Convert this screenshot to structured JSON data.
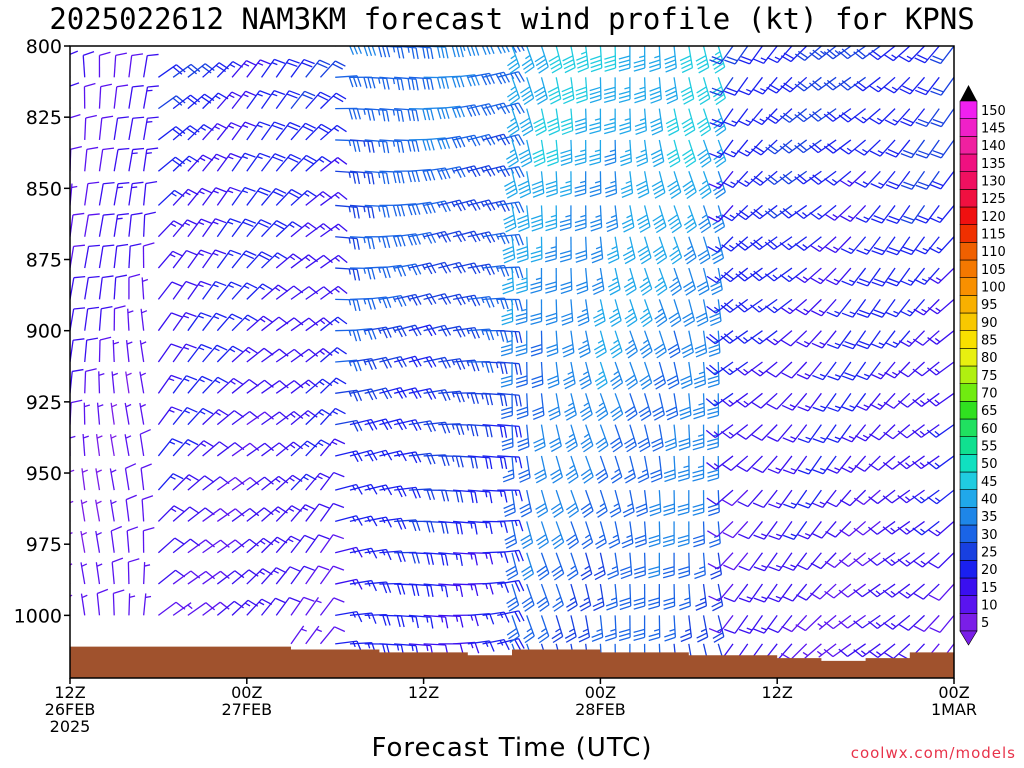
{
  "title": "2025022612 NAM3KM forecast wind profile (kt) for KPNS",
  "credit": "coolwx.com/models",
  "chart_data": {
    "type": "wind_barb_time_height",
    "title": "2025022612 NAM3KM forecast wind profile (kt) for KPNS",
    "xlabel": "Forecast Time (UTC)",
    "ylabel": "",
    "units": "kt",
    "y_ticks": [
      800,
      825,
      850,
      875,
      900,
      925,
      950,
      975,
      1000
    ],
    "ylim": [
      800,
      1022
    ],
    "y_inverted": true,
    "x_range_hours": [
      0,
      60
    ],
    "x_ticks": [
      {
        "hour": 0,
        "lines": [
          "12Z",
          "26FEB",
          "2025"
        ]
      },
      {
        "hour": 12,
        "lines": [
          "00Z",
          "27FEB"
        ]
      },
      {
        "hour": 24,
        "lines": [
          "12Z"
        ]
      },
      {
        "hour": 36,
        "lines": [
          "00Z",
          "28FEB"
        ]
      },
      {
        "hour": 48,
        "lines": [
          "12Z"
        ]
      },
      {
        "hour": 60,
        "lines": [
          "00Z",
          "1MAR"
        ]
      }
    ],
    "levels": [
      800,
      811,
      822,
      833,
      844,
      856,
      867,
      878,
      889,
      900,
      911,
      922,
      933,
      944,
      956,
      967,
      978,
      989,
      1000,
      1010
    ],
    "surface_pressure": [
      {
        "hour": 0,
        "p": 1011
      },
      {
        "hour": 6,
        "p": 1011
      },
      {
        "hour": 12,
        "p": 1011
      },
      {
        "hour": 15,
        "p": 1012
      },
      {
        "hour": 18,
        "p": 1012
      },
      {
        "hour": 21,
        "p": 1013
      },
      {
        "hour": 24,
        "p": 1013
      },
      {
        "hour": 27,
        "p": 1014
      },
      {
        "hour": 30,
        "p": 1012
      },
      {
        "hour": 36,
        "p": 1013
      },
      {
        "hour": 42,
        "p": 1014
      },
      {
        "hour": 48,
        "p": 1015
      },
      {
        "hour": 51,
        "p": 1016
      },
      {
        "hour": 54,
        "p": 1015
      },
      {
        "hour": 57,
        "p": 1013
      },
      {
        "hour": 60,
        "p": 1012
      }
    ],
    "wind_phases": [
      {
        "hours": [
          0,
          6
        ],
        "direction_deg": 360,
        "speed_kt": [
          5,
          12
        ]
      },
      {
        "hours": [
          6,
          18
        ],
        "direction_deg": 45,
        "speed_kt": [
          10,
          18
        ]
      },
      {
        "hours": [
          18,
          30
        ],
        "direction_deg": 85,
        "speed_kt": [
          15,
          30
        ]
      },
      {
        "hours": [
          30,
          45
        ],
        "direction_deg": 170,
        "speed_kt": [
          25,
          40
        ]
      },
      {
        "hours": [
          45,
          60
        ],
        "direction_deg": 225,
        "speed_kt": [
          10,
          20
        ]
      }
    ],
    "colorbar": {
      "values": [
        5,
        10,
        15,
        20,
        25,
        30,
        35,
        40,
        45,
        50,
        55,
        60,
        65,
        70,
        75,
        80,
        85,
        90,
        95,
        100,
        105,
        110,
        115,
        120,
        125,
        130,
        135,
        140,
        145,
        150
      ],
      "colors": [
        "#7a1ee8",
        "#5a14f0",
        "#3a0ff0",
        "#1a20f0",
        "#1840e0",
        "#1a64e6",
        "#1e86e8",
        "#20a8ea",
        "#20cce0",
        "#10e0c0",
        "#10e090",
        "#20e060",
        "#30e020",
        "#70ec10",
        "#b0f010",
        "#e8f010",
        "#f8e000",
        "#f8c800",
        "#f8b000",
        "#f89000",
        "#f47800",
        "#f06000",
        "#f03000",
        "#f01010",
        "#f01040",
        "#f01060",
        "#f01080",
        "#f020a0",
        "#f020c8",
        "#f020f0"
      ]
    }
  }
}
